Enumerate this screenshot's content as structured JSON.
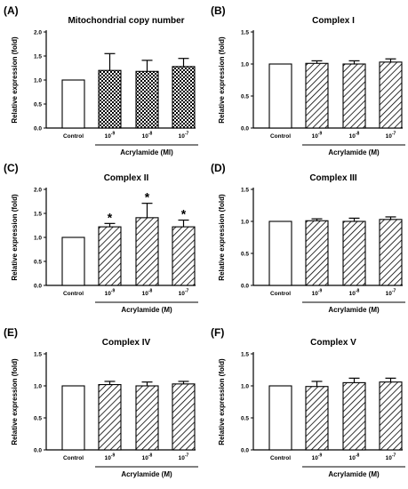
{
  "chart_data": [
    {
      "type": "bar",
      "panel_label": "(A)",
      "title": "Mitochondrial copy number",
      "ylabel": "Relative expression (fold)",
      "group_label": "Acrylamide (Ml)",
      "ylim": [
        0,
        2.0
      ],
      "yticks": [
        "0.0",
        "0.5",
        "1.0",
        "1.5",
        "2.0"
      ],
      "categories": [
        {
          "base": "Control",
          "sup": ""
        },
        {
          "base": "10",
          "sup": "-9"
        },
        {
          "base": "10",
          "sup": "-8"
        },
        {
          "base": "10",
          "sup": "-7"
        }
      ],
      "values": [
        1.0,
        1.2,
        1.18,
        1.28
      ],
      "errors": [
        0,
        0.35,
        0.23,
        0.17
      ],
      "significant": [
        false,
        false,
        false,
        false
      ],
      "fills": [
        "white",
        "checker",
        "checker",
        "checker"
      ]
    },
    {
      "type": "bar",
      "panel_label": "(B)",
      "title": "Complex I",
      "ylabel": "Relative expression (fold)",
      "group_label": "Acrylamide (M)",
      "ylim": [
        0,
        1.5
      ],
      "yticks": [
        "0.0",
        "0.5",
        "1.0",
        "1.5"
      ],
      "categories": [
        {
          "base": "Control",
          "sup": ""
        },
        {
          "base": "10",
          "sup": "-9"
        },
        {
          "base": "10",
          "sup": "-8"
        },
        {
          "base": "10",
          "sup": "-7"
        }
      ],
      "values": [
        1.0,
        1.01,
        1.0,
        1.03
      ],
      "errors": [
        0,
        0.04,
        0.05,
        0.05
      ],
      "significant": [
        false,
        false,
        false,
        false
      ],
      "fills": [
        "white",
        "hatch",
        "hatch",
        "hatch"
      ]
    },
    {
      "type": "bar",
      "panel_label": "(C)",
      "title": "Complex II",
      "ylabel": "Relative expression (fold)",
      "group_label": "Acrylamide (M)",
      "ylim": [
        0,
        2.0
      ],
      "yticks": [
        "0.0",
        "0.5",
        "1.0",
        "1.5",
        "2.0"
      ],
      "categories": [
        {
          "base": "Control",
          "sup": ""
        },
        {
          "base": "10",
          "sup": "-9"
        },
        {
          "base": "10",
          "sup": "-8"
        },
        {
          "base": "10",
          "sup": "-7"
        }
      ],
      "values": [
        1.0,
        1.22,
        1.41,
        1.22
      ],
      "errors": [
        0,
        0.07,
        0.3,
        0.14
      ],
      "significant": [
        false,
        true,
        true,
        true
      ],
      "significance_marker": "*",
      "fills": [
        "white",
        "hatch",
        "hatch",
        "hatch"
      ]
    },
    {
      "type": "bar",
      "panel_label": "(D)",
      "title": "Complex III",
      "ylabel": "Relative expression (fold)",
      "group_label": "Acrylamide (M)",
      "ylim": [
        0,
        1.5
      ],
      "yticks": [
        "0.0",
        "0.5",
        "1.0",
        "1.5"
      ],
      "categories": [
        {
          "base": "Control",
          "sup": ""
        },
        {
          "base": "10",
          "sup": "-9"
        },
        {
          "base": "10",
          "sup": "-8"
        },
        {
          "base": "10",
          "sup": "-7"
        }
      ],
      "values": [
        1.0,
        1.01,
        1.0,
        1.03
      ],
      "errors": [
        0,
        0.03,
        0.05,
        0.04
      ],
      "significant": [
        false,
        false,
        false,
        false
      ],
      "fills": [
        "white",
        "hatch",
        "hatch",
        "hatch"
      ]
    },
    {
      "type": "bar",
      "panel_label": "(E)",
      "title": "Complex IV",
      "ylabel": "Relative expression (fold)",
      "group_label": "Acrylamide (M)",
      "ylim": [
        0,
        1.5
      ],
      "yticks": [
        "0.0",
        "0.5",
        "1.0",
        "1.5"
      ],
      "categories": [
        {
          "base": "Control",
          "sup": ""
        },
        {
          "base": "10",
          "sup": "-9"
        },
        {
          "base": "10",
          "sup": "-8"
        },
        {
          "base": "10",
          "sup": "-7"
        }
      ],
      "values": [
        1.0,
        1.02,
        1.0,
        1.03
      ],
      "errors": [
        0,
        0.05,
        0.06,
        0.04
      ],
      "significant": [
        false,
        false,
        false,
        false
      ],
      "fills": [
        "white",
        "hatch",
        "hatch",
        "hatch"
      ]
    },
    {
      "type": "bar",
      "panel_label": "(F)",
      "title": "Complex V",
      "ylabel": "Relative expression (fold)",
      "group_label": "Acrylamide (M)",
      "ylim": [
        0,
        1.5
      ],
      "yticks": [
        "0.0",
        "0.5",
        "1.0",
        "1.5"
      ],
      "categories": [
        {
          "base": "Control",
          "sup": ""
        },
        {
          "base": "10",
          "sup": "-9"
        },
        {
          "base": "10",
          "sup": "-8"
        },
        {
          "base": "10",
          "sup": "-7"
        }
      ],
      "values": [
        1.0,
        0.99,
        1.05,
        1.06
      ],
      "errors": [
        0,
        0.08,
        0.07,
        0.06
      ],
      "significant": [
        false,
        false,
        false,
        false
      ],
      "fills": [
        "white",
        "hatch",
        "hatch",
        "hatch"
      ]
    }
  ]
}
